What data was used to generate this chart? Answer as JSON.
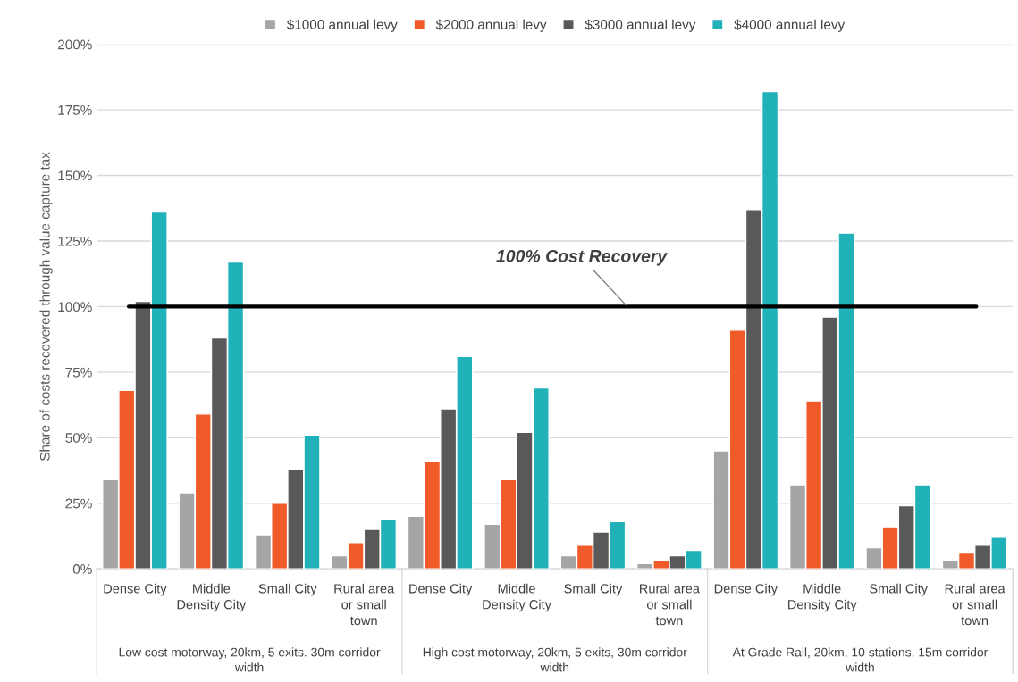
{
  "chart_data": {
    "type": "bar",
    "categories": [
      "Dense City",
      "Middle\nDensity City",
      "Small City",
      "Rural area\nor small\ntown",
      "Dense City",
      "Middle\nDensity City",
      "Small City",
      "Rural area\nor small\ntown",
      "Dense City",
      "Middle\nDensity City",
      "Small City",
      "Rural area\nor small\ntown"
    ],
    "series": [
      {
        "name": "$1000 annual levy",
        "color": "#a5a5a5",
        "values": [
          34,
          29,
          13,
          5,
          20,
          17,
          5,
          2,
          45,
          32,
          8,
          3
        ]
      },
      {
        "name": "$2000 annual levy",
        "color": "#f15a29",
        "values": [
          68,
          59,
          25,
          10,
          41,
          34,
          9,
          3,
          91,
          64,
          16,
          6
        ]
      },
      {
        "name": "$3000 annual levy",
        "color": "#595959",
        "values": [
          102,
          88,
          38,
          15,
          61,
          52,
          14,
          5,
          137,
          96,
          24,
          9
        ]
      },
      {
        "name": "$4000 annual levy",
        "color": "#20b2b8",
        "values": [
          136,
          117,
          51,
          19,
          81,
          69,
          18,
          7,
          182,
          128,
          32,
          12
        ]
      }
    ],
    "ylabel": "Share of costs recovered through value capture tax",
    "ylim": [
      0,
      200
    ],
    "yticks": [
      {
        "value": 0,
        "label": "0%"
      },
      {
        "value": 25,
        "label": "25%"
      },
      {
        "value": 50,
        "label": "50%"
      },
      {
        "value": 75,
        "label": "75%"
      },
      {
        "value": 100,
        "label": "100%"
      },
      {
        "value": 125,
        "label": "125%"
      },
      {
        "value": 150,
        "label": "150%"
      },
      {
        "value": 175,
        "label": "175%"
      },
      {
        "value": 200,
        "label": "200%"
      }
    ],
    "ref_lines": [
      {
        "axis": "y",
        "value": 100,
        "label": "100% Cost Recovery",
        "color": "#000000"
      }
    ],
    "annotations": [
      "Low cost motorway, 20km, 5 exits. 30m corridor\nwidth",
      "High cost motorway, 20km, 5 exits, 30m corridor\nwidth",
      "At Grade Rail, 20km, 10 stations, 15m corridor\nwidth"
    ],
    "grid": "y",
    "legend": "top"
  }
}
